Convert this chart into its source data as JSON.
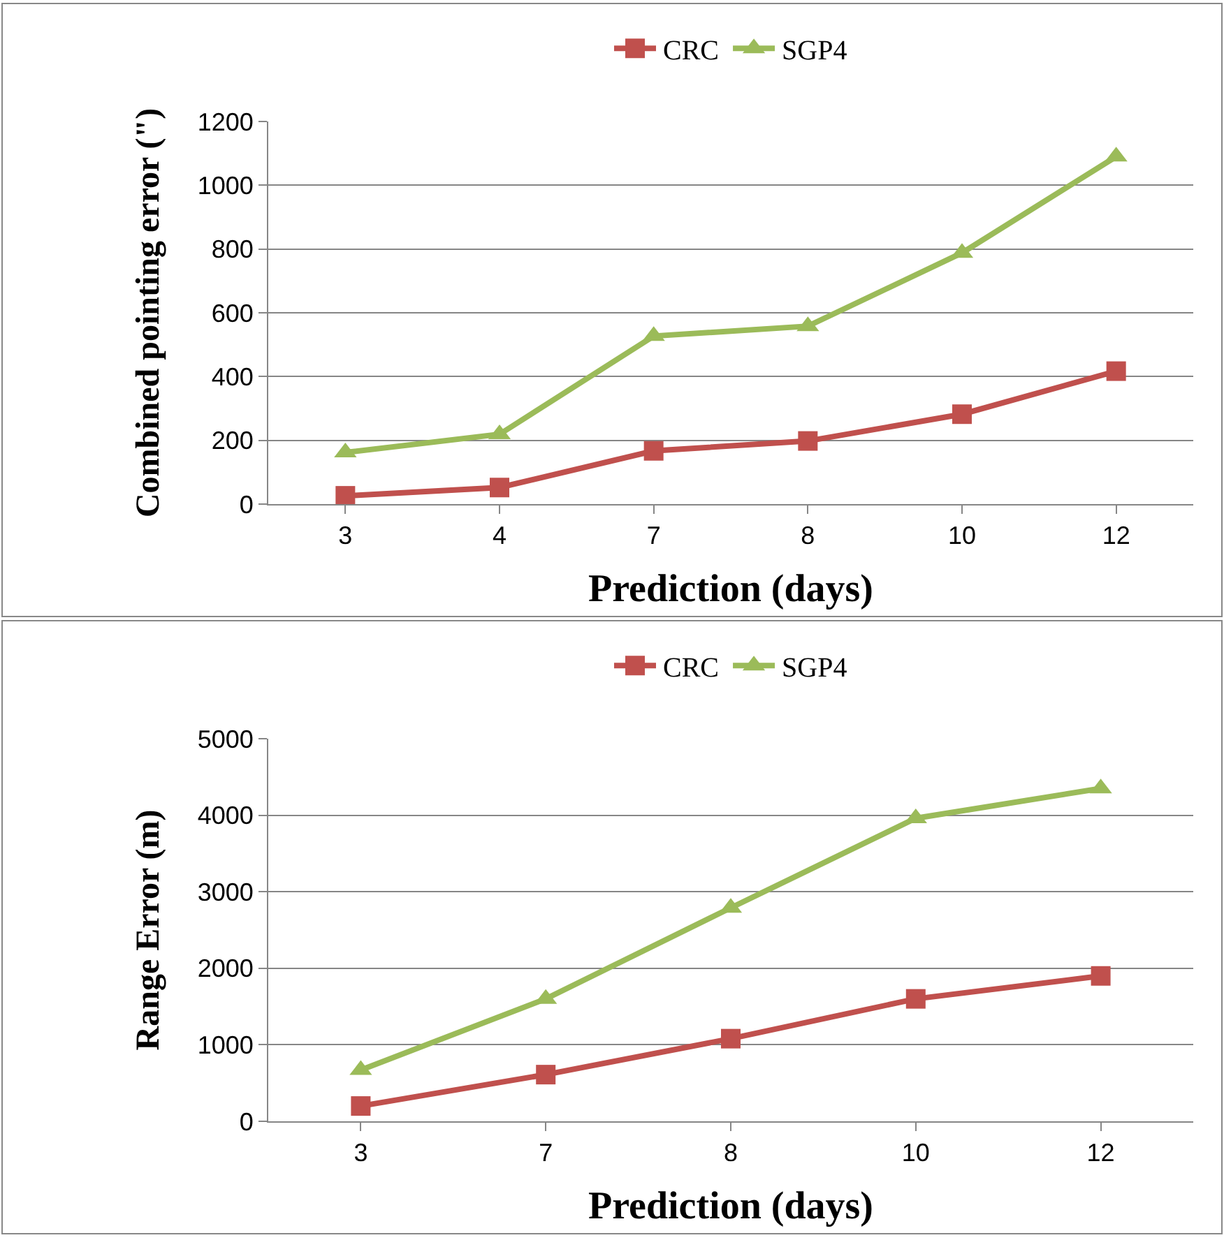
{
  "chart_data": [
    {
      "type": "line",
      "xlabel": "Prediction (days)",
      "ylabel": "Combined pointing error (\")",
      "categories": [
        "3",
        "4",
        "7",
        "8",
        "10",
        "12"
      ],
      "ylim": [
        0,
        1200
      ],
      "yticks": [
        0,
        200,
        400,
        600,
        800,
        1000,
        1200
      ],
      "grid": "y",
      "legend": "top",
      "series": [
        {
          "name": "CRC",
          "color": "#c0504d",
          "marker": "square",
          "values": [
            26,
            52,
            167,
            198,
            282,
            417
          ]
        },
        {
          "name": "SGP4",
          "color": "#9bbb59",
          "marker": "triangle",
          "values": [
            162,
            219,
            527,
            558,
            788,
            1090
          ]
        }
      ]
    },
    {
      "type": "line",
      "xlabel": "Prediction (days)",
      "ylabel": "Range Error (m)",
      "categories": [
        "3",
        "7",
        "8",
        "10",
        "12"
      ],
      "ylim": [
        0,
        5000
      ],
      "yticks": [
        0,
        1000,
        2000,
        3000,
        4000,
        5000
      ],
      "grid": "y",
      "legend": "top",
      "series": [
        {
          "name": "CRC",
          "color": "#c0504d",
          "marker": "square",
          "values": [
            200,
            610,
            1080,
            1600,
            1900
          ]
        },
        {
          "name": "SGP4",
          "color": "#9bbb59",
          "marker": "triangle",
          "values": [
            670,
            1600,
            2790,
            3960,
            4350
          ]
        }
      ]
    }
  ]
}
